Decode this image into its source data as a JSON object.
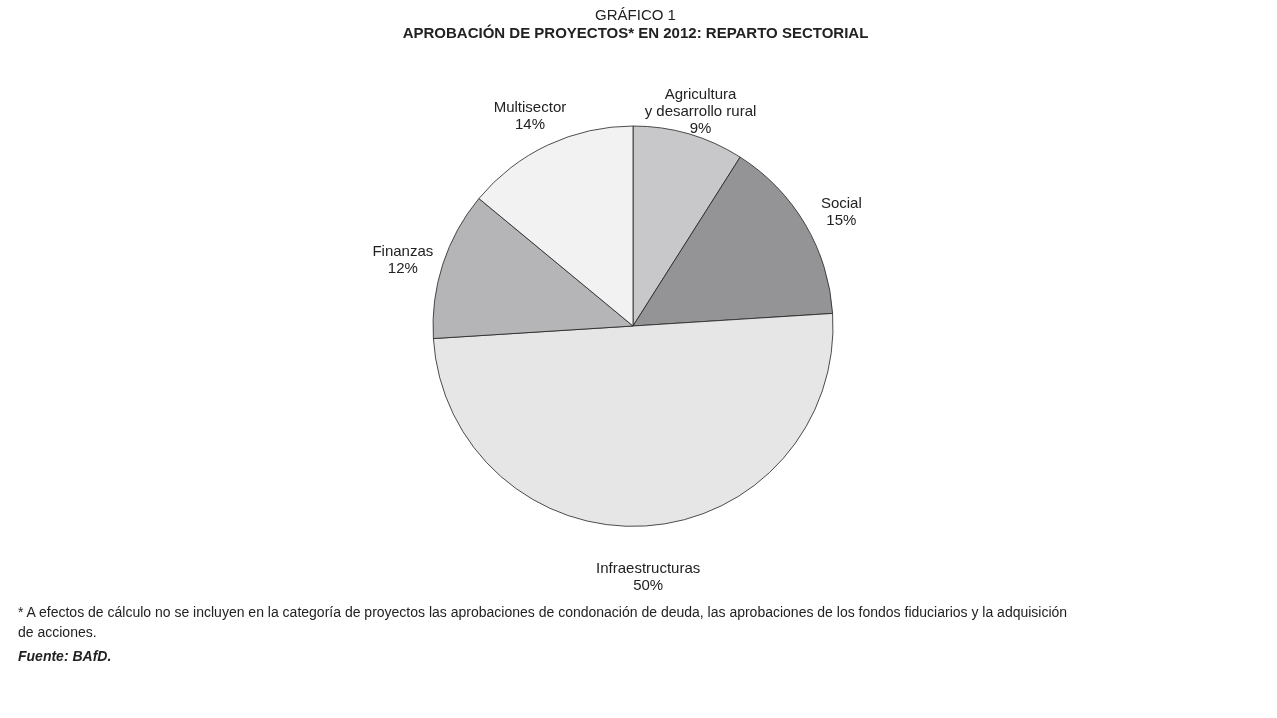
{
  "chart_data": {
    "type": "pie",
    "title": "GRÁFICO 1",
    "subtitle": "APROBACIÓN DE PROYECTOS* EN 2012: REPARTO SECTORIAL",
    "categories": [
      "Agricultura\ny desarrollo rural",
      "Social",
      "Infraestructuras",
      "Finanzas",
      "Multisector"
    ],
    "values": [
      9,
      15,
      50,
      12,
      14
    ],
    "value_labels": [
      "9%",
      "15%",
      "50%",
      "12%",
      "14%"
    ],
    "colors": [
      "#c8c8ca",
      "#949496",
      "#e6e6e7",
      "#b5b5b7",
      "#f2f2f2"
    ],
    "annotations": [
      "* A efectos de cálculo no se incluyen en la categoría de proyectos las aprobaciones de condonación de deuda, las aprobaciones de los fondos fiduciarios y la adquisición de acciones.",
      "Fuente: BAfD."
    ]
  }
}
